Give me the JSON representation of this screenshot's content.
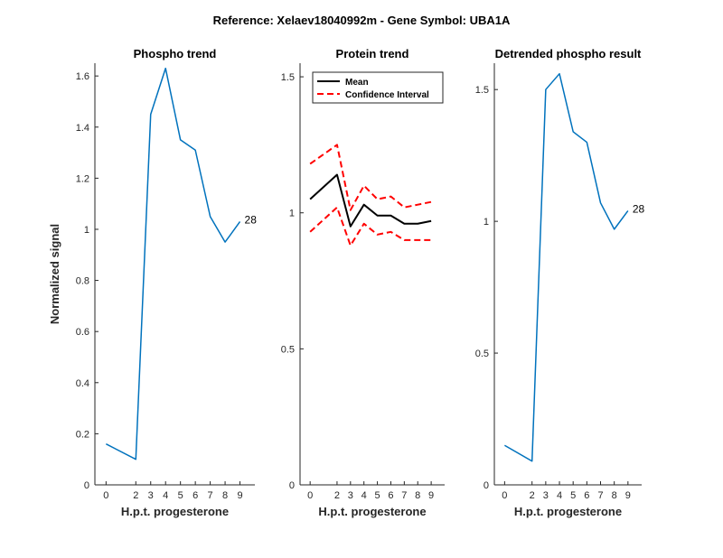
{
  "figure": {
    "suptitle": "Reference:  Xelaev18040992m - Gene Symbol:  UBA1A"
  },
  "colors": {
    "phospho": "#0072BD",
    "mean": "#000000",
    "ci": "#FF0000",
    "axis": "#262626"
  },
  "chart_data": [
    {
      "type": "line",
      "title": "Phospho trend",
      "xlabel": "H.p.t. progesterone",
      "ylabel": "Normalized signal",
      "x": [
        0,
        2,
        3,
        4,
        5,
        6,
        7,
        8,
        9
      ],
      "xticks": [
        "0",
        "2",
        "3",
        "4",
        "5",
        "6",
        "7",
        "8",
        "9"
      ],
      "ylim": [
        0,
        1.65
      ],
      "yticks": [
        "0",
        "0.2",
        "0.4",
        "0.6",
        "0.8",
        "1",
        "1.2",
        "1.4",
        "1.6"
      ],
      "series": [
        {
          "values": [
            0.16,
            0.1,
            1.45,
            1.63,
            1.35,
            1.31,
            1.05,
            0.95,
            1.03
          ]
        }
      ],
      "annotation": "28",
      "grid": false
    },
    {
      "type": "line",
      "title": "Protein trend",
      "xlabel": "H.p.t. progesterone",
      "ylabel": "",
      "x": [
        0,
        2,
        3,
        4,
        5,
        6,
        7,
        8,
        9
      ],
      "xticks": [
        "0",
        "2",
        "3",
        "4",
        "5",
        "6",
        "7",
        "8",
        "9"
      ],
      "ylim": [
        0,
        1.55
      ],
      "yticks": [
        "0",
        "0.5",
        "1",
        "1.5"
      ],
      "series": [
        {
          "name": "Mean",
          "values": [
            1.05,
            1.14,
            0.95,
            1.03,
            0.99,
            0.99,
            0.96,
            0.96,
            0.97
          ]
        },
        {
          "name": "Confidence Interval",
          "values": [
            1.18,
            1.25,
            1.01,
            1.1,
            1.05,
            1.06,
            1.02,
            1.03,
            1.04
          ]
        },
        {
          "values": [
            0.93,
            1.02,
            0.88,
            0.96,
            0.92,
            0.93,
            0.9,
            0.9,
            0.9
          ]
        }
      ],
      "legend": "top-left",
      "grid": false
    },
    {
      "type": "line",
      "title": "Detrended phospho result",
      "xlabel": "H.p.t. progesterone",
      "ylabel": "",
      "x": [
        0,
        2,
        3,
        4,
        5,
        6,
        7,
        8,
        9
      ],
      "xticks": [
        "0",
        "2",
        "3",
        "4",
        "5",
        "6",
        "7",
        "8",
        "9"
      ],
      "ylim": [
        0,
        1.6
      ],
      "yticks": [
        "0",
        "0.5",
        "1",
        "1.5"
      ],
      "series": [
        {
          "values": [
            0.15,
            0.09,
            1.5,
            1.56,
            1.34,
            1.3,
            1.07,
            0.97,
            1.04
          ]
        }
      ],
      "annotation": "28",
      "grid": false
    }
  ]
}
